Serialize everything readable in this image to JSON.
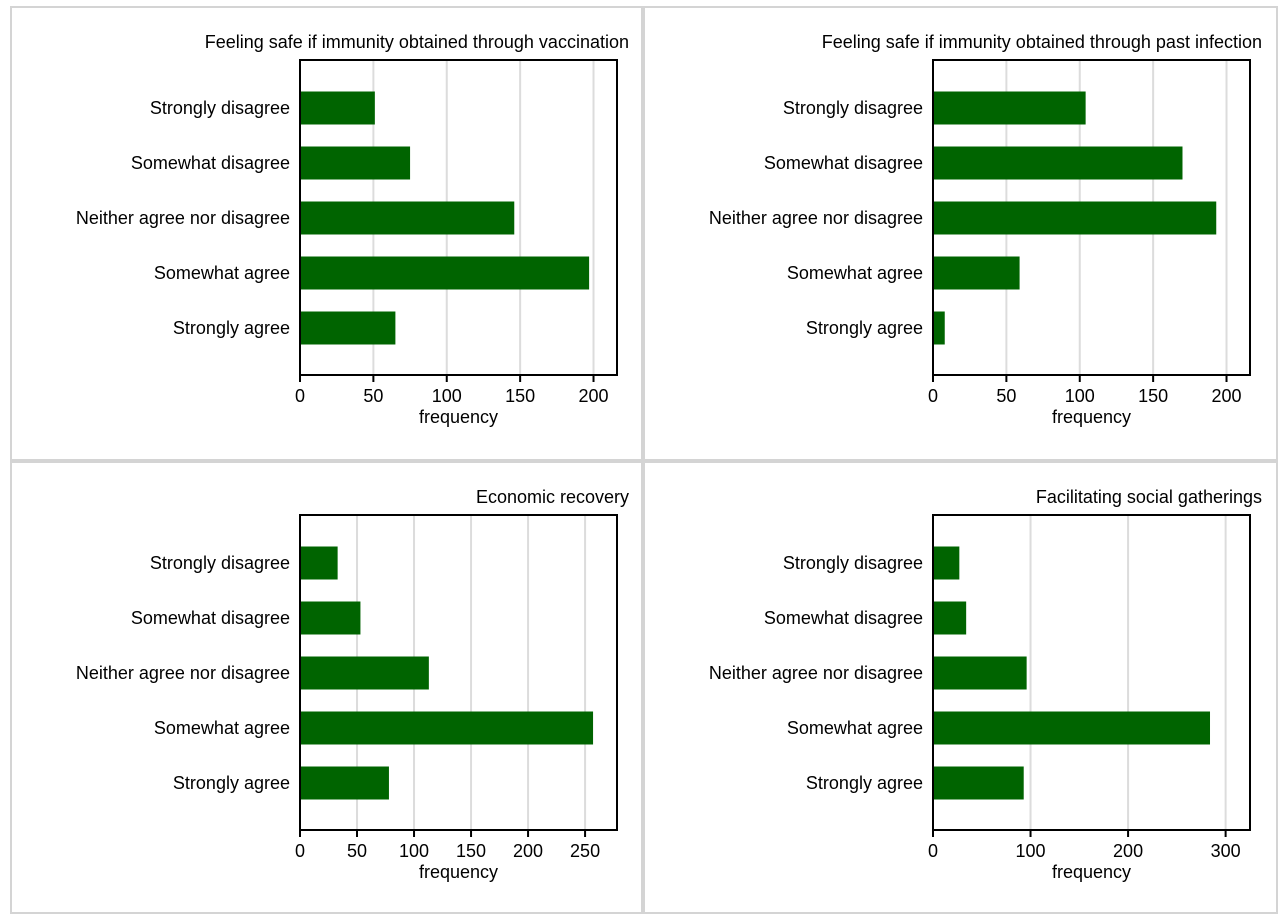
{
  "colors": {
    "bar": "#006400",
    "grid": "#dcdcdc",
    "axis": "#000000"
  },
  "chart_data": [
    {
      "type": "bar",
      "orientation": "horizontal",
      "title": "Feeling safe if immunity obtained through vaccination",
      "xlabel": "frequency",
      "categories": [
        "Strongly disagree",
        "Somewhat disagree",
        "Neither agree nor disagree",
        "Somewhat agree",
        "Strongly agree"
      ],
      "values": [
        51,
        75,
        146,
        197,
        65
      ],
      "xticks": [
        0,
        50,
        100,
        150,
        200
      ],
      "tick_labels": [
        "0",
        "50",
        "100",
        "150",
        "200"
      ],
      "xlim": [
        0,
        216
      ],
      "grid": true
    },
    {
      "type": "bar",
      "orientation": "horizontal",
      "title": "Feeling safe if immunity obtained through past infection",
      "xlabel": "frequency",
      "categories": [
        "Strongly disagree",
        "Somewhat disagree",
        "Neither agree nor disagree",
        "Somewhat agree",
        "Strongly agree"
      ],
      "values": [
        104,
        170,
        193,
        59,
        8
      ],
      "xticks": [
        0,
        50,
        100,
        150,
        200
      ],
      "tick_labels": [
        "0",
        "50",
        "100",
        "150",
        "200"
      ],
      "xlim": [
        0,
        216
      ],
      "grid": true
    },
    {
      "type": "bar",
      "orientation": "horizontal",
      "title": "Economic recovery",
      "xlabel": "frequency",
      "categories": [
        "Strongly disagree",
        "Somewhat disagree",
        "Neither agree nor disagree",
        "Somewhat agree",
        "Strongly agree"
      ],
      "values": [
        33,
        53,
        113,
        257,
        78
      ],
      "xticks": [
        0,
        50,
        100,
        150,
        200,
        250
      ],
      "tick_labels": [
        "0",
        "50",
        "100",
        "150",
        "200",
        "250"
      ],
      "xlim": [
        0,
        278
      ],
      "grid": true
    },
    {
      "type": "bar",
      "orientation": "horizontal",
      "title": "Facilitating social gatherings",
      "xlabel": "frequency",
      "categories": [
        "Strongly disagree",
        "Somewhat disagree",
        "Neither agree nor disagree",
        "Somewhat agree",
        "Strongly agree"
      ],
      "values": [
        27,
        34,
        96,
        284,
        93
      ],
      "xticks": [
        0,
        100,
        200,
        300
      ],
      "tick_labels": [
        "0",
        "100",
        "200",
        "300"
      ],
      "xlim": [
        0,
        325
      ],
      "grid": true
    }
  ]
}
